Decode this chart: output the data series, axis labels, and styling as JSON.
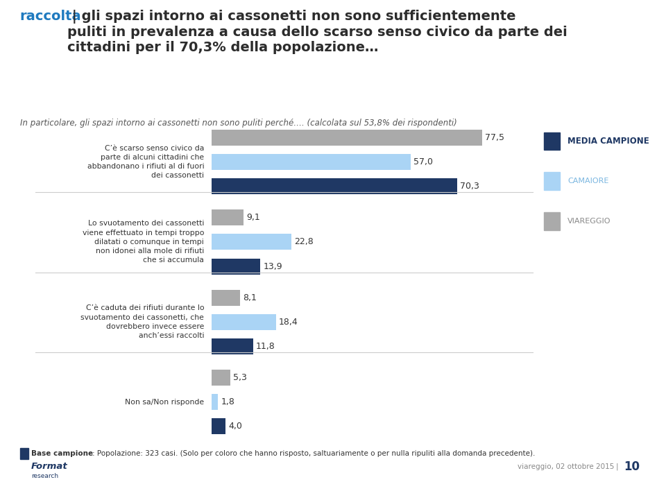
{
  "title_blue": "raccolta",
  "title_rest": " | gli spazi intorno ai cassonetti non sono sufficientemente\npuliti in prevalenza a causa dello scarso senso civico da parte dei\ncittadini per il 70,3% della popolazione…",
  "subtitle": "In particolare, gli spazi intorno ai cassonetti non sono puliti perché…. (calcolata sul 53,8% dei rispondenti)",
  "categories": [
    "C’è scarso senso civico da\nparte di alcuni cittadini che\nabbandonano i rifiuti al di fuori\ndei cassonetti",
    "Lo svuotamento dei cassonetti\nviene effettuato in tempi troppo\ndilatati o comunque in tempi\nnon idonei alla mole di rifiuti\nche si accumula",
    "C’è caduta dei rifiuti durante lo\nsvuotamento dei cassonetti, che\ndovrebbero invece essere\nanch’essi raccolti",
    "Non sa/Non risponde"
  ],
  "viareggio": [
    77.5,
    9.1,
    8.1,
    5.3
  ],
  "camaiore": [
    57.0,
    22.8,
    18.4,
    1.8
  ],
  "media_campione": [
    70.3,
    13.9,
    11.8,
    4.0
  ],
  "color_viareggio": "#aaaaaa",
  "color_camaiore": "#aad4f5",
  "color_media": "#1f3864",
  "legend_labels": [
    "MEDIA CAMPIONE",
    "CAMAIORE",
    "VIAREGGIO"
  ],
  "legend_label_colors": [
    "#1f3864",
    "#7ab6e0",
    "#888888"
  ],
  "footer_bold": "Base campione",
  "footer_text": ": Popolazione: 323 casi. (Solo per coloro che hanno risposto, saltuariamente o per nulla ripuliti alla domanda precedente).",
  "footer_right": "viareggio, 02 ottobre 2015",
  "page_number": "10",
  "background_color": "#ffffff"
}
